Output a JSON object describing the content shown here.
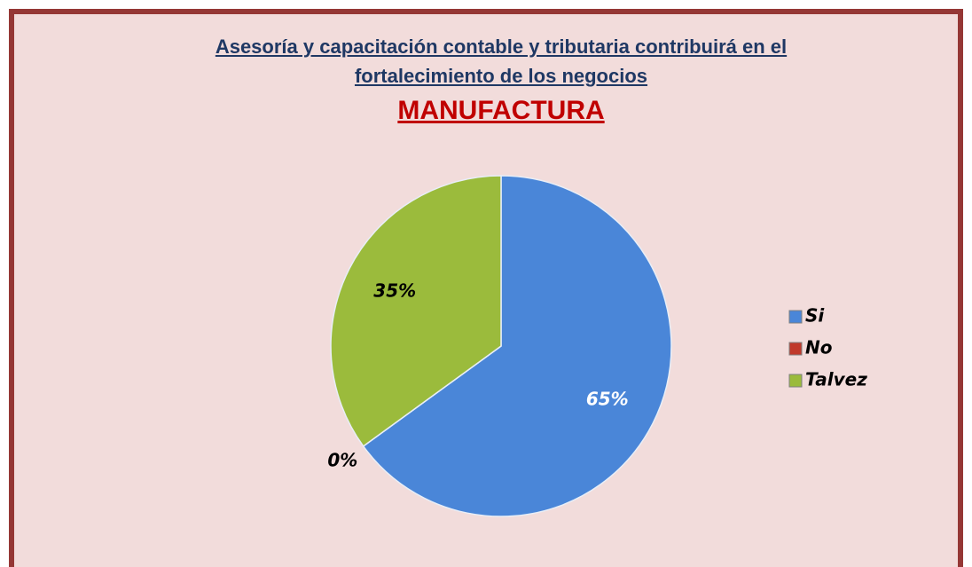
{
  "chart_data": {
    "type": "pie",
    "title": "Asesoría y capacitación contable y tributaria contribuirá en el fortalecimiento de los negocios",
    "subtitle": "MANUFACTURA",
    "categories": [
      "Si",
      "No",
      "Talvez"
    ],
    "values": [
      65,
      0,
      35
    ],
    "value_labels": [
      "65%",
      "0%",
      "35%"
    ],
    "colors": [
      "#4a86d8",
      "#c0392b",
      "#9bbb3c"
    ],
    "legend": "right"
  }
}
